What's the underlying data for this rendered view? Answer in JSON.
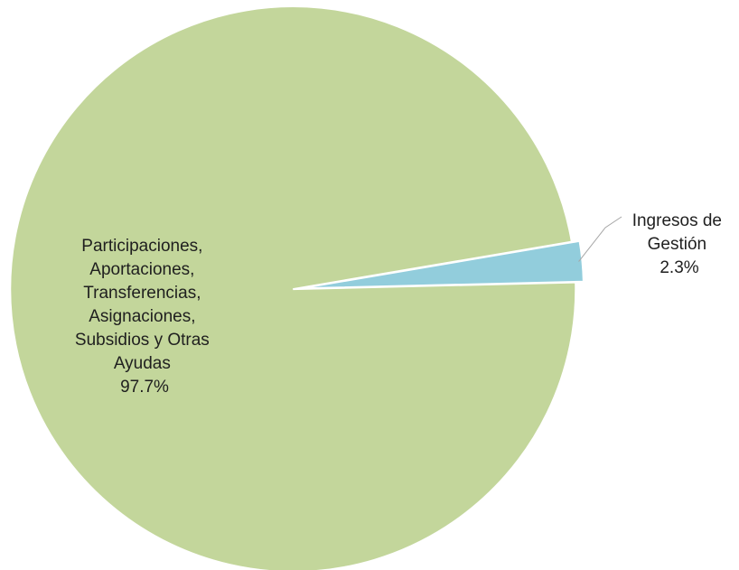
{
  "chart_data": {
    "type": "pie",
    "title": "",
    "slices": [
      {
        "label_lines": [
          "Ingresos de",
          "Gestión"
        ],
        "pct_label": "2.3%",
        "value": 2.3,
        "color": "#92cddc"
      },
      {
        "label_lines": [
          "Participaciones,",
          "Aportaciones,",
          "Transferencias,",
          "Asignaciones,",
          "Subsidios y Otras",
          "Ayudas"
        ],
        "pct_label": "97.7%",
        "value": 97.7,
        "color": "#c3d69b"
      }
    ],
    "leader_line_color": "#a6a6a6"
  }
}
